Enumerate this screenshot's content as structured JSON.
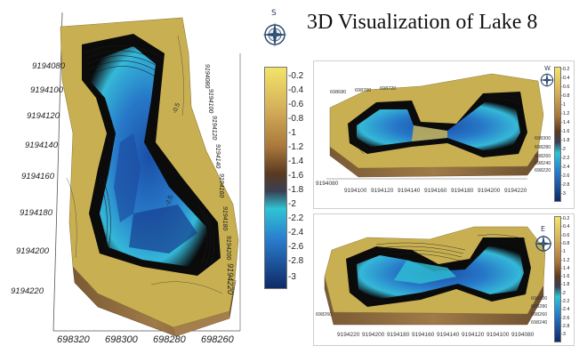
{
  "title": "3D Visualization  of Lake 8",
  "colors": {
    "sand": "#c8b053",
    "wall": "#8c6a3c",
    "deep": "#0c2d6a",
    "mid": "#1f7fd0",
    "shallow": "#2dc8d8",
    "black": "#080808"
  },
  "main_view": {
    "compass_letter": "S",
    "y_labels": [
      "9194080",
      "9194100",
      "9194120",
      "9194140",
      "9194160",
      "9194180",
      "9194200",
      "9194220"
    ],
    "x_labels": [
      "698320",
      "698300",
      "698280",
      "698260"
    ],
    "right_axis_labels": [
      "9194080",
      "9194100",
      "9194120",
      "9194140",
      "9194160",
      "9194180",
      "9194200",
      "9194220"
    ],
    "contour_labels": [
      "-0.5",
      "-2.5"
    ]
  },
  "colorbar": {
    "ticks": [
      "-0.2",
      "-0.4",
      "-0.6",
      "-0.8",
      "-1",
      "-1.2",
      "-1.4",
      "-1.6",
      "-1.8",
      "-2",
      "-2.2",
      "-2.4",
      "-2.6",
      "-2.8",
      "-3"
    ]
  },
  "top_right_view": {
    "compass_letter": "W",
    "x_labels": [
      "9194080",
      "9194100",
      "9194120",
      "9194140",
      "9194160",
      "9194180",
      "9194200",
      "9194220"
    ],
    "top_labels": [
      "698680",
      "698700",
      "698720"
    ],
    "side_labels": [
      "698300",
      "698280",
      "698260",
      "698240",
      "698220"
    ],
    "colorbar_ticks": [
      "-0.2",
      "-0.4",
      "-0.6",
      "-0.8",
      "-1",
      "-1.2",
      "-1.4",
      "-1.6",
      "-1.8",
      "-2",
      "-2.2",
      "-2.4",
      "-2.6",
      "-2.8",
      "-3"
    ]
  },
  "bottom_right_view": {
    "compass_letter": "E",
    "x_labels": [
      "9194220",
      "9194200",
      "9194180",
      "9194160",
      "9194140",
      "9194120",
      "9194100",
      "9194080"
    ],
    "left_labels": [
      "698260"
    ],
    "side_labels": [
      "698300",
      "698280",
      "698260",
      "698240"
    ],
    "colorbar_ticks": [
      "-0.2",
      "-0.4",
      "-0.6",
      "-0.8",
      "-1",
      "-1.2",
      "-1.4",
      "-1.6",
      "-1.8",
      "-2",
      "-2.2",
      "-2.4",
      "-2.6",
      "-2.8",
      "-3"
    ]
  }
}
